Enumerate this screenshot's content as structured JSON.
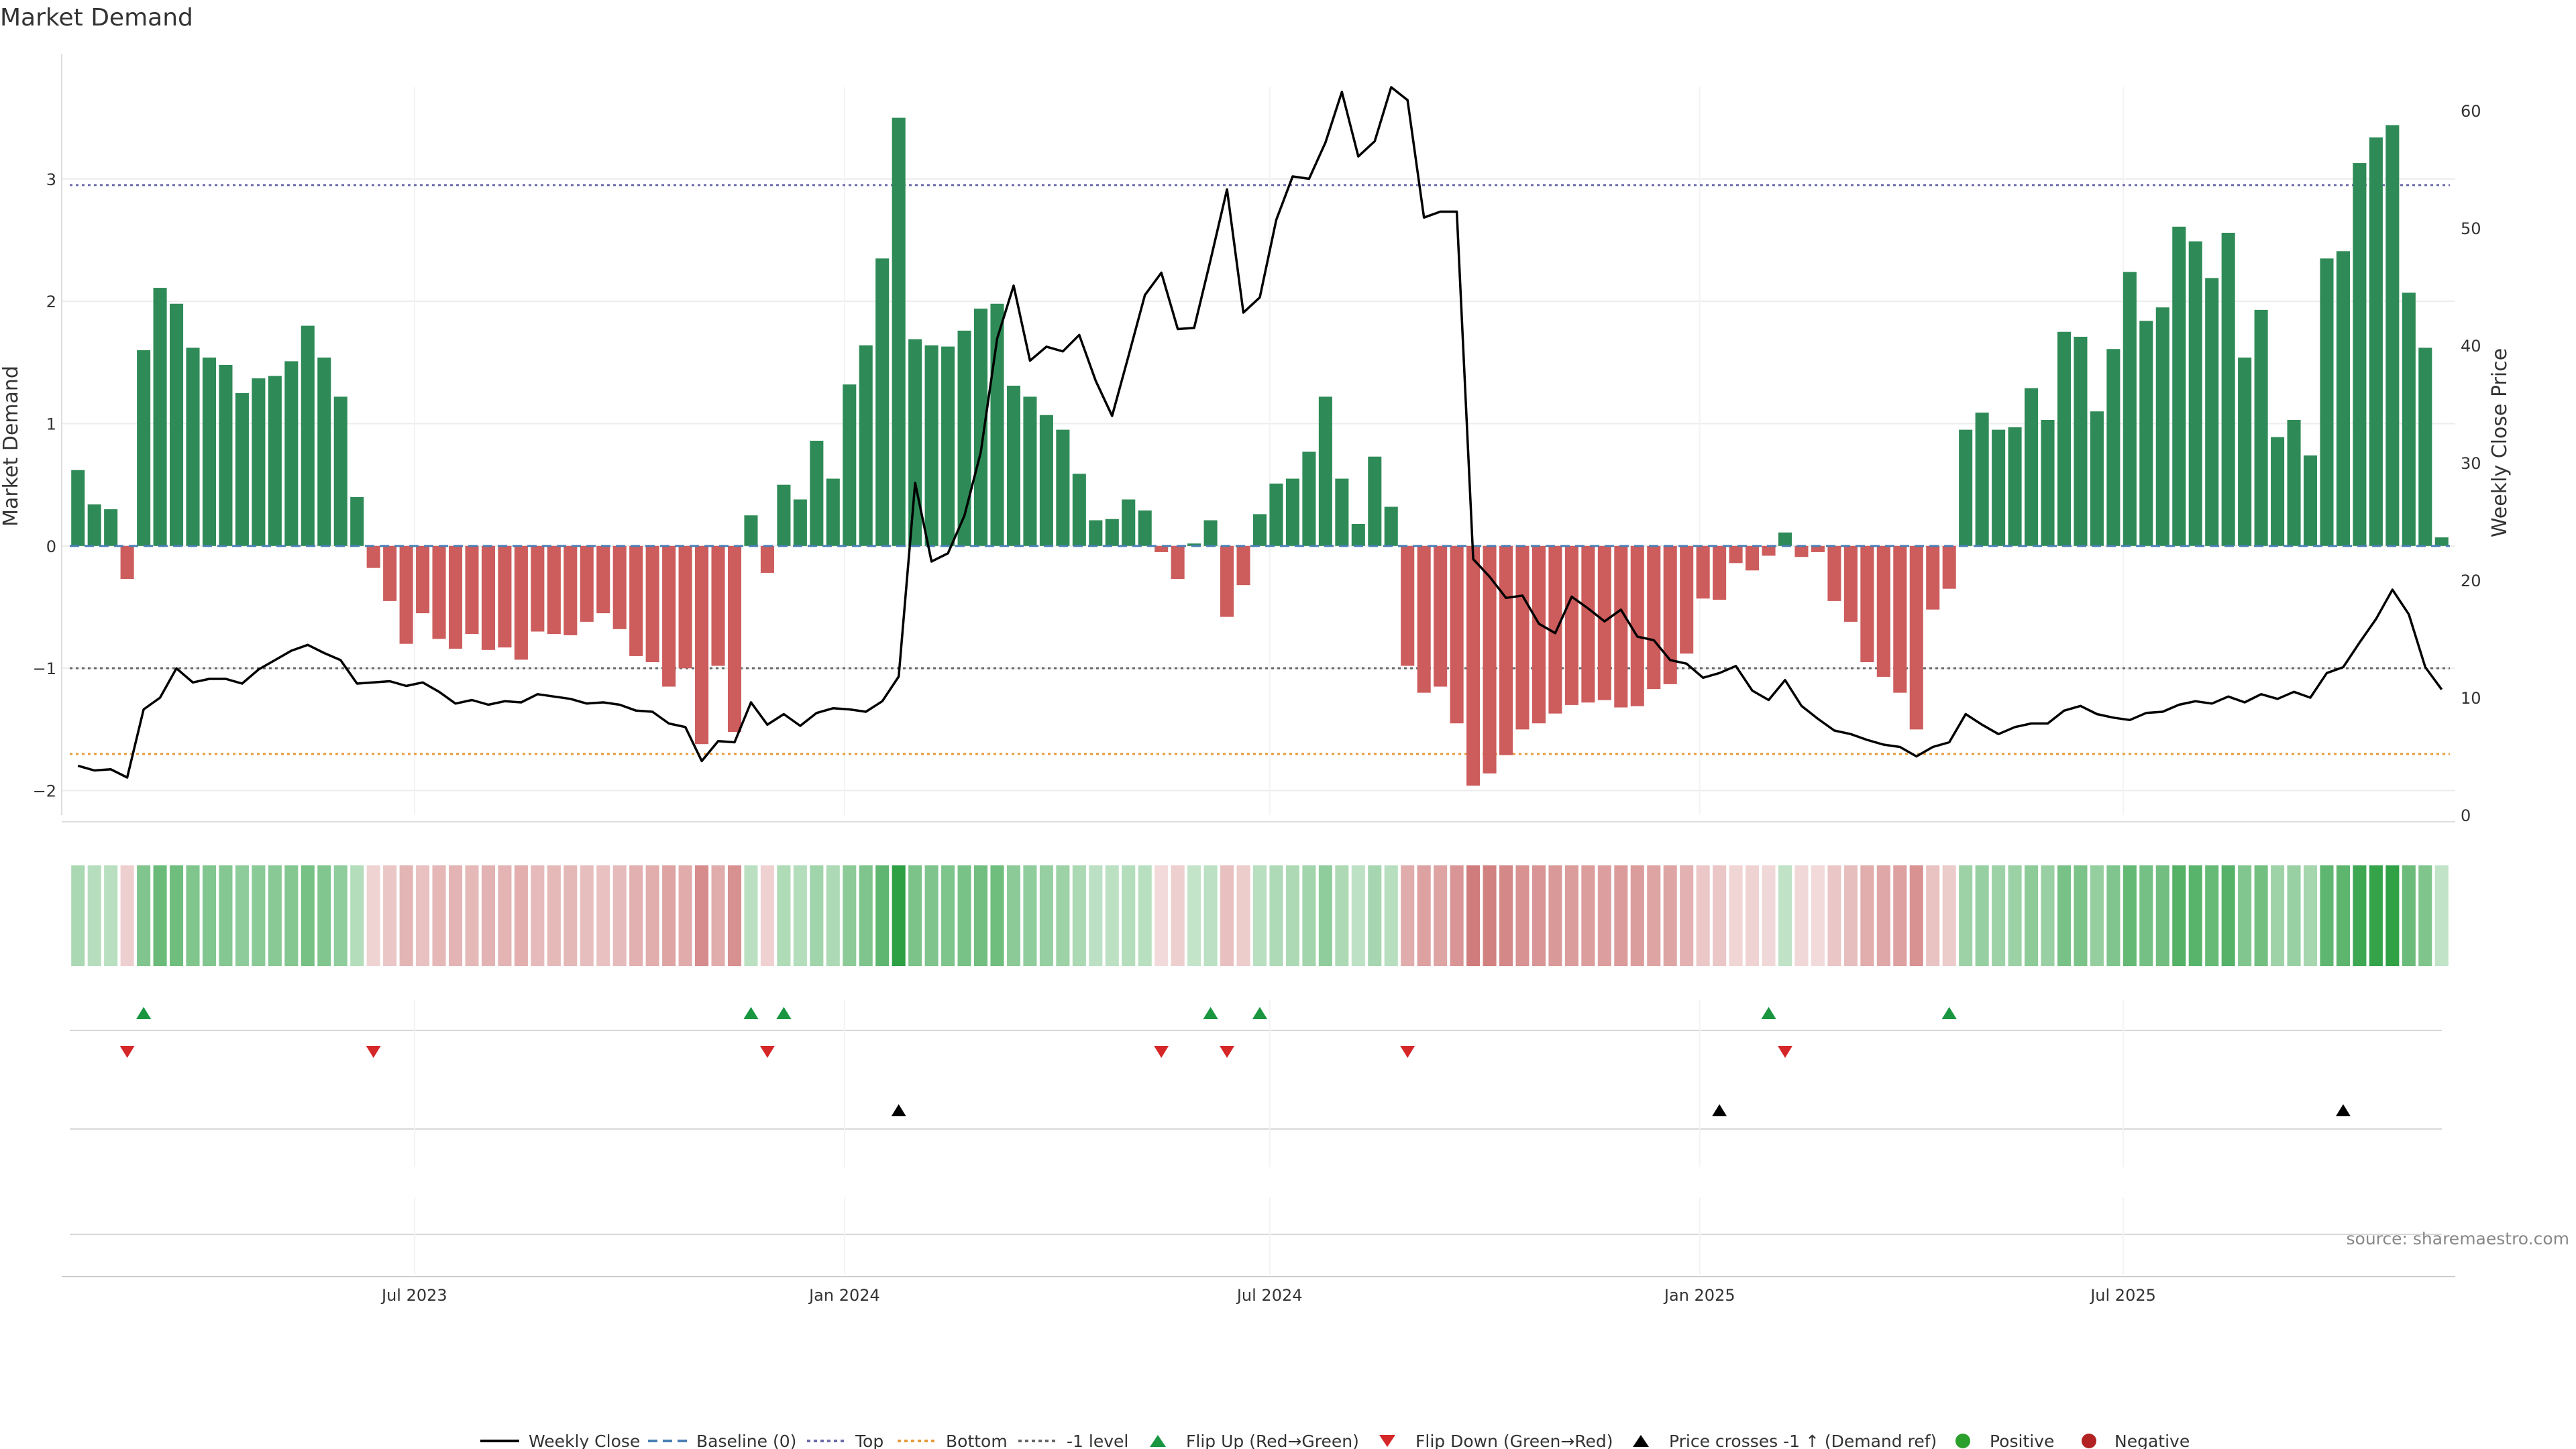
{
  "colors": {
    "positive": "#2e8b57",
    "negative": "#cd5c5c",
    "price": "#000000",
    "top": "#6a6aa8",
    "bottom": "#e69a3a",
    "minus1": "#666666",
    "flip_up": "#1a9641",
    "flip_down": "#d62728",
    "cross": "#000000",
    "grid": "#ececec"
  },
  "chart_data": {
    "type": "bar",
    "title": "Market Demand",
    "ylabel": "Market Demand",
    "y2label": "Weekly Close Price",
    "ylim": [
      -2.2,
      3.75
    ],
    "y2lim": [
      0,
      62
    ],
    "yticks": [
      -2,
      -1,
      0,
      1,
      2,
      3
    ],
    "yticklabels": [
      "−2",
      "−1",
      "0",
      "1",
      "2",
      "3"
    ],
    "y2ticks": [
      0,
      10,
      20,
      30,
      40,
      50,
      60
    ],
    "y2ticklabels": [
      "0",
      "10",
      "20",
      "30",
      "40",
      "50",
      "60"
    ],
    "levels": {
      "top": 2.95,
      "bottom": -1.7,
      "minus1": -1.0,
      "baseline": 0
    },
    "x_ticks": [
      {
        "label": "Jul 2023",
        "week": 20.5
      },
      {
        "label": "Jan 2024",
        "week": 46.7
      },
      {
        "label": "Jul 2024",
        "week": 72.6
      },
      {
        "label": "Jan 2025",
        "week": 98.8
      },
      {
        "label": "Jul 2025",
        "week": 124.6
      }
    ],
    "demand": [
      0.62,
      0.34,
      0.3,
      -0.27,
      1.6,
      2.11,
      1.98,
      1.62,
      1.54,
      1.48,
      1.25,
      1.37,
      1.39,
      1.51,
      1.8,
      1.54,
      1.22,
      0.4,
      -0.18,
      -0.45,
      -0.8,
      -0.55,
      -0.76,
      -0.84,
      -0.72,
      -0.85,
      -0.83,
      -0.93,
      -0.7,
      -0.72,
      -0.73,
      -0.62,
      -0.55,
      -0.68,
      -0.9,
      -0.95,
      -1.15,
      -1.0,
      -1.62,
      -0.98,
      -1.52,
      0.25,
      -0.22,
      0.5,
      0.38,
      0.86,
      0.55,
      1.32,
      1.64,
      2.35,
      3.5,
      1.69,
      1.64,
      1.63,
      1.76,
      1.94,
      1.98,
      1.31,
      1.22,
      1.07,
      0.95,
      0.59,
      0.21,
      0.22,
      0.38,
      0.29,
      -0.05,
      -0.27,
      0.02,
      0.21,
      -0.58,
      -0.32,
      0.26,
      0.51,
      0.55,
      0.77,
      1.22,
      0.55,
      0.18,
      0.73,
      0.32,
      -0.98,
      -1.2,
      -1.15,
      -1.45,
      -1.96,
      -1.86,
      -1.71,
      -1.5,
      -1.45,
      -1.37,
      -1.3,
      -1.28,
      -1.26,
      -1.32,
      -1.31,
      -1.17,
      -1.13,
      -0.88,
      -0.43,
      -0.44,
      -0.14,
      -0.2,
      -0.08,
      0.11,
      -0.09,
      -0.05,
      -0.45,
      -0.62,
      -0.95,
      -1.07,
      -1.2,
      -1.5,
      -0.52,
      -0.35,
      0.95,
      1.09,
      0.95,
      0.97,
      1.29,
      1.03,
      1.75,
      1.71,
      1.1,
      1.61,
      2.24,
      1.84,
      1.95,
      2.61,
      2.49,
      2.19,
      2.56,
      1.54,
      1.93,
      0.89,
      1.03,
      0.74,
      2.35,
      2.41,
      3.13,
      3.34,
      3.44,
      2.07,
      1.62,
      0.07
    ],
    "price": [
      4.2,
      3.8,
      3.9,
      3.2,
      9.0,
      10.0,
      12.5,
      11.3,
      11.6,
      11.6,
      11.2,
      12.4,
      13.2,
      14.0,
      14.5,
      13.8,
      13.2,
      11.2,
      11.3,
      11.4,
      11.0,
      11.3,
      10.5,
      9.5,
      9.8,
      9.4,
      9.7,
      9.6,
      10.3,
      10.1,
      9.9,
      9.5,
      9.6,
      9.4,
      8.9,
      8.8,
      7.8,
      7.5,
      4.6,
      6.3,
      6.2,
      9.6,
      7.7,
      8.6,
      7.6,
      8.7,
      9.1,
      9.0,
      8.8,
      9.7,
      11.8,
      28.3,
      21.6,
      22.3,
      25.5,
      30.9,
      40.6,
      45.1,
      38.7,
      39.9,
      39.5,
      40.9,
      37.0,
      34.0,
      39.1,
      44.3,
      46.2,
      41.4,
      41.5,
      47.3,
      53.3,
      42.8,
      44.1,
      50.7,
      54.4,
      54.2,
      57.3,
      61.6,
      56.1,
      57.4,
      62.0,
      60.9,
      50.9,
      51.4,
      51.4,
      21.8,
      20.3,
      18.5,
      18.7,
      16.3,
      15.5,
      18.6,
      17.6,
      16.5,
      17.5,
      15.2,
      14.9,
      13.2,
      12.9,
      11.7,
      12.1,
      12.7,
      10.6,
      9.8,
      11.5,
      9.3,
      8.2,
      7.2,
      6.9,
      6.4,
      6.0,
      5.8,
      5.0,
      5.8,
      6.2,
      8.6,
      7.7,
      6.9,
      7.5,
      7.8,
      7.8,
      8.9,
      9.3,
      8.6,
      8.3,
      8.1,
      8.7,
      8.8,
      9.4,
      9.7,
      9.5,
      10.1,
      9.6,
      10.3,
      9.9,
      10.5,
      10.0,
      12.1,
      12.6,
      14.7,
      16.7,
      19.2,
      17.1,
      12.6,
      10.7
    ],
    "flip_up_weeks": [
      4,
      41,
      43,
      69,
      72,
      103,
      114
    ],
    "flip_down_weeks": [
      3,
      18,
      42,
      66,
      70,
      81,
      104
    ],
    "cross_weeks": [
      50,
      100,
      138
    ],
    "strip_shade_note": "heatmap strip shade encodes demand magnitude"
  },
  "legend": {
    "weekly_close": "Weekly Close",
    "baseline": "Baseline (0)",
    "top": "Top",
    "bottom": "Bottom",
    "minus1": "-1 level",
    "flip_up": "Flip Up (Red→Green)",
    "flip_down": "Flip Down (Green→Red)",
    "cross": "Price crosses -1 ↑ (Demand ref)",
    "positive": "Positive",
    "negative": "Negative"
  },
  "source": "source: sharemaestro.com"
}
